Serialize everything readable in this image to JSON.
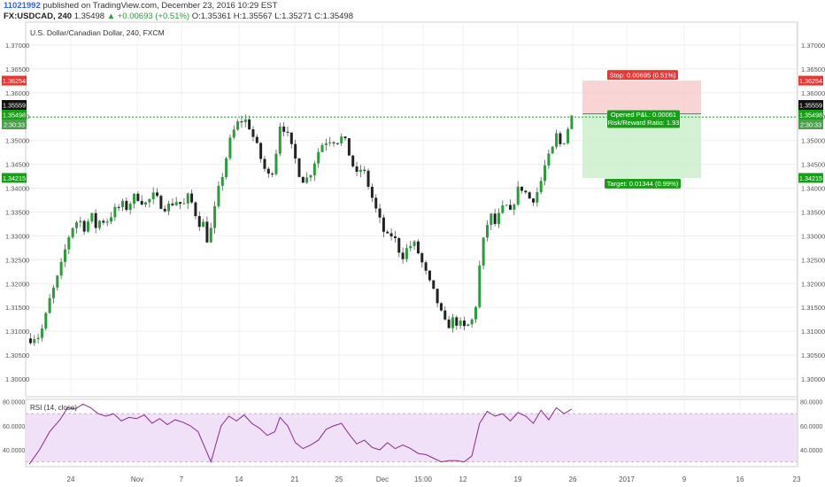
{
  "header": {
    "user_id": "11021992",
    "published_text": "published on TradingView.com, December 23, 2016 10:29 EST",
    "symbol": "FX:USDCAD, 240",
    "last": "1.35498",
    "change": "▲ +0.00693 (+0.51%)",
    "open": "O:1.35361",
    "high": "H:1.35567",
    "low": "L:1.35271",
    "close": "C:1.35498"
  },
  "colors": {
    "up": "#2a9d3b",
    "down": "#222222",
    "wick": "#555555",
    "stop_zone": "#f7c6c6",
    "target_zone": "#c8edc8",
    "stop_label": "#e53935",
    "target_label": "#1a9e1a",
    "price_line": "#2a9d3b",
    "rsi_line": "#8a2c8a",
    "rsi_band": "#f0e0f8"
  },
  "chart_data": [
    {
      "type": "candlestick",
      "title": "U.S. Dollar/Canadian Dollar, 240, FXCM",
      "x_ticks": [
        "24",
        "Nov",
        "7",
        "14",
        "21",
        "25",
        "Dec",
        "15:00",
        "12",
        "19",
        "26",
        "2017",
        "9",
        "16",
        "23"
      ],
      "ylim": [
        1.2963,
        1.3748
      ],
      "y_ticks": [
        "1.37000",
        "1.36500",
        "1.36000",
        "1.35500",
        "1.35000",
        "1.34500",
        "1.34000",
        "1.33500",
        "1.33000",
        "1.32500",
        "1.32000",
        "1.31500",
        "1.31000",
        "1.30500",
        "1.30000"
      ],
      "y_tick_values": [
        1.37,
        1.365,
        1.36,
        1.355,
        1.35,
        1.345,
        1.34,
        1.335,
        1.33,
        1.325,
        1.32,
        1.315,
        1.31,
        1.305,
        1.3
      ],
      "close_points": [
        [
          0,
          1.3085
        ],
        [
          4,
          1.309
        ],
        [
          8,
          1.309
        ],
        [
          12,
          1.312
        ],
        [
          16,
          1.3165
        ],
        [
          20,
          1.3195
        ],
        [
          24,
          1.3225
        ],
        [
          28,
          1.327
        ],
        [
          32,
          1.331
        ],
        [
          36,
          1.333
        ],
        [
          40,
          1.333
        ],
        [
          44,
          1.3315
        ],
        [
          48,
          1.3345
        ],
        [
          52,
          1.332
        ],
        [
          56,
          1.3335
        ],
        [
          60,
          1.333
        ],
        [
          64,
          1.3345
        ],
        [
          68,
          1.3355
        ],
        [
          72,
          1.3365
        ],
        [
          76,
          1.336
        ],
        [
          80,
          1.3375
        ],
        [
          84,
          1.3385
        ],
        [
          88,
          1.3375
        ],
        [
          92,
          1.3365
        ],
        [
          96,
          1.3385
        ],
        [
          100,
          1.3375
        ],
        [
          104,
          1.3365
        ],
        [
          108,
          1.336
        ],
        [
          112,
          1.337
        ],
        [
          116,
          1.3375
        ],
        [
          120,
          1.336
        ],
        [
          124,
          1.338
        ],
        [
          128,
          1.3365
        ],
        [
          132,
          1.333
        ],
        [
          136,
          1.3325
        ],
        [
          140,
          1.3285
        ],
        [
          144,
          1.334
        ],
        [
          148,
          1.3395
        ],
        [
          152,
          1.344
        ],
        [
          156,
          1.349
        ],
        [
          160,
          1.352
        ],
        [
          164,
          1.354
        ],
        [
          168,
          1.3545
        ],
        [
          172,
          1.353
        ],
        [
          176,
          1.35
        ],
        [
          180,
          1.347
        ],
        [
          184,
          1.344
        ],
        [
          188,
          1.342
        ],
        [
          192,
          1.346
        ],
        [
          196,
          1.3535
        ],
        [
          200,
          1.3525
        ],
        [
          204,
          1.349
        ],
        [
          208,
          1.346
        ],
        [
          212,
          1.3425
        ],
        [
          216,
          1.3415
        ],
        [
          220,
          1.3435
        ],
        [
          224,
          1.3465
        ],
        [
          228,
          1.349
        ],
        [
          232,
          1.35
        ],
        [
          236,
          1.3505
        ],
        [
          240,
          1.35
        ],
        [
          244,
          1.3505
        ],
        [
          248,
          1.349
        ],
        [
          252,
          1.3455
        ],
        [
          256,
          1.3425
        ],
        [
          260,
          1.3445
        ],
        [
          264,
          1.3415
        ],
        [
          268,
          1.338
        ],
        [
          272,
          1.3345
        ],
        [
          276,
          1.3315
        ],
        [
          280,
          1.3295
        ],
        [
          284,
          1.3305
        ],
        [
          288,
          1.3275
        ],
        [
          292,
          1.326
        ],
        [
          296,
          1.3275
        ],
        [
          300,
          1.3285
        ],
        [
          304,
          1.3265
        ],
        [
          308,
          1.3235
        ],
        [
          312,
          1.3205
        ],
        [
          316,
          1.318
        ],
        [
          320,
          1.3155
        ],
        [
          324,
          1.3115
        ],
        [
          328,
          1.3115
        ],
        [
          332,
          1.3125
        ],
        [
          336,
          1.3115
        ],
        [
          340,
          1.3105
        ],
        [
          344,
          1.3115
        ],
        [
          348,
          1.313
        ],
        [
          352,
          1.3235
        ],
        [
          356,
          1.3305
        ],
        [
          360,
          1.3345
        ],
        [
          364,
          1.3325
        ],
        [
          368,
          1.3345
        ],
        [
          372,
          1.3365
        ],
        [
          376,
          1.3345
        ],
        [
          380,
          1.3385
        ],
        [
          384,
          1.3405
        ],
        [
          388,
          1.339
        ],
        [
          392,
          1.3375
        ],
        [
          396,
          1.3385
        ],
        [
          400,
          1.3415
        ],
        [
          404,
          1.3455
        ],
        [
          408,
          1.347
        ],
        [
          412,
          1.351
        ],
        [
          416,
          1.3485
        ],
        [
          420,
          1.352
        ],
        [
          424,
          1.3549
        ]
      ],
      "price_label_current": "1.35498",
      "price_label_high": "1.35559",
      "countdown_label": "2:30:33",
      "long_position": {
        "entry": 1.35559,
        "stop": 1.36254,
        "target": 1.34215,
        "stop_price_label": "1.36254",
        "target_price_label": "1.34215",
        "stop_text": "Stop: 0.00695 (0.51%)",
        "target_text": "Target: 0.01344 (0.99%)",
        "pnl_text": "Opened P&L: 0.00061",
        "rr_text": "Risk/Reward Ratio: 1.93"
      }
    },
    {
      "type": "line",
      "title": "RSI (14, close)",
      "ylim": [
        26,
        82
      ],
      "y_ticks": [
        "80.0000",
        "60.0000",
        "40.0000"
      ],
      "y_tick_values": [
        80,
        60,
        40
      ],
      "band": [
        30,
        70
      ],
      "points": [
        [
          0,
          28
        ],
        [
          8,
          40
        ],
        [
          16,
          55
        ],
        [
          24,
          65
        ],
        [
          30,
          75
        ],
        [
          36,
          74
        ],
        [
          42,
          78
        ],
        [
          48,
          75
        ],
        [
          54,
          70
        ],
        [
          60,
          68
        ],
        [
          66,
          70
        ],
        [
          72,
          64
        ],
        [
          78,
          67
        ],
        [
          84,
          66
        ],
        [
          90,
          69
        ],
        [
          96,
          62
        ],
        [
          102,
          66
        ],
        [
          108,
          61
        ],
        [
          114,
          65
        ],
        [
          120,
          63
        ],
        [
          126,
          60
        ],
        [
          132,
          55
        ],
        [
          138,
          40
        ],
        [
          142,
          30
        ],
        [
          146,
          45
        ],
        [
          150,
          60
        ],
        [
          156,
          68
        ],
        [
          162,
          64
        ],
        [
          168,
          69
        ],
        [
          174,
          62
        ],
        [
          180,
          58
        ],
        [
          186,
          52
        ],
        [
          192,
          55
        ],
        [
          196,
          67
        ],
        [
          202,
          60
        ],
        [
          208,
          46
        ],
        [
          214,
          41
        ],
        [
          220,
          44
        ],
        [
          226,
          48
        ],
        [
          232,
          57
        ],
        [
          238,
          60
        ],
        [
          244,
          62
        ],
        [
          250,
          53
        ],
        [
          256,
          45
        ],
        [
          262,
          48
        ],
        [
          268,
          42
        ],
        [
          274,
          40
        ],
        [
          280,
          46
        ],
        [
          286,
          41
        ],
        [
          292,
          44
        ],
        [
          298,
          41
        ],
        [
          304,
          37
        ],
        [
          310,
          36
        ],
        [
          316,
          33
        ],
        [
          322,
          30
        ],
        [
          328,
          31
        ],
        [
          334,
          31
        ],
        [
          340,
          30
        ],
        [
          346,
          35
        ],
        [
          352,
          62
        ],
        [
          358,
          72
        ],
        [
          364,
          68
        ],
        [
          370,
          70
        ],
        [
          376,
          64
        ],
        [
          382,
          71
        ],
        [
          388,
          68
        ],
        [
          394,
          62
        ],
        [
          400,
          73
        ],
        [
          406,
          65
        ],
        [
          412,
          75
        ],
        [
          418,
          70
        ],
        [
          424,
          74
        ]
      ]
    }
  ]
}
